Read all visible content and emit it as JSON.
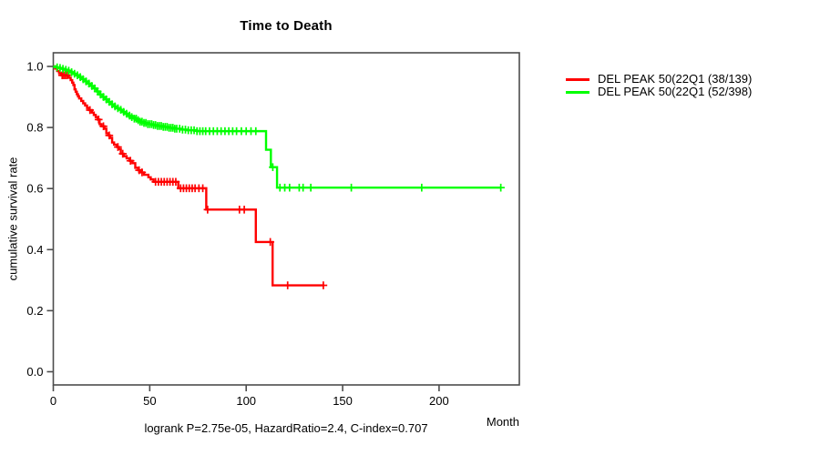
{
  "title": "Time to Death",
  "footer": {
    "text": "logrank P=2.75e-05, HazardRatio=2.4, C-index=0.707"
  },
  "axis": {
    "x_label": "Month",
    "y_label": "cumulative survival rate"
  },
  "legend": {
    "items": [
      {
        "label": "DEL PEAK 50(22Q1 (38/139)",
        "color": "#ff0000"
      },
      {
        "label": "DEL PEAK 50(22Q1 (52/398)",
        "color": "#00ff00"
      }
    ]
  },
  "colors": {
    "frame": "#4d4d4d",
    "text": "#000000",
    "background": "#ffffff"
  },
  "chart_data": {
    "type": "line",
    "subtype": "kaplan-meier-step-curves",
    "title": "Time to Death",
    "xlabel": "Month",
    "ylabel": "cumulative survival rate",
    "xlim": [
      0,
      235
    ],
    "ylim": [
      0.0,
      1.0
    ],
    "x_ticks": [
      0,
      50,
      100,
      150,
      200
    ],
    "y_ticks": [
      0.0,
      0.2,
      0.4,
      0.6,
      0.8,
      1.0
    ],
    "grid": false,
    "legend_position": "right-outside",
    "annotation": "logrank P=2.75e-05, HazardRatio=2.4, C-index=0.707",
    "series": [
      {
        "name": "DEL PEAK 50(22Q1 (38/139)",
        "color": "#ff0000",
        "end_month": 140.5,
        "steps": [
          [
            0,
            1.0
          ],
          [
            1,
            0.993
          ],
          [
            2,
            0.985
          ],
          [
            3,
            0.978
          ],
          [
            4,
            0.971
          ],
          [
            8,
            0.963
          ],
          [
            9,
            0.955
          ],
          [
            9.8,
            0.947
          ],
          [
            10.4,
            0.939
          ],
          [
            11,
            0.925
          ],
          [
            11.6,
            0.917
          ],
          [
            12.2,
            0.909
          ],
          [
            12.8,
            0.902
          ],
          [
            13.4,
            0.895
          ],
          [
            14.5,
            0.887
          ],
          [
            15.5,
            0.879
          ],
          [
            16.5,
            0.872
          ],
          [
            17.5,
            0.864
          ],
          [
            18.5,
            0.857
          ],
          [
            20,
            0.849
          ],
          [
            21,
            0.841
          ],
          [
            22,
            0.834
          ],
          [
            23,
            0.826
          ],
          [
            24,
            0.811
          ],
          [
            25,
            0.804
          ],
          [
            26.5,
            0.796
          ],
          [
            27.5,
            0.781
          ],
          [
            28.5,
            0.774
          ],
          [
            29.5,
            0.766
          ],
          [
            30.5,
            0.751
          ],
          [
            31.5,
            0.744
          ],
          [
            33,
            0.736
          ],
          [
            34,
            0.729
          ],
          [
            35,
            0.714
          ],
          [
            36.5,
            0.706
          ],
          [
            38,
            0.699
          ],
          [
            39.5,
            0.691
          ],
          [
            41,
            0.683
          ],
          [
            42.5,
            0.668
          ],
          [
            44,
            0.66
          ],
          [
            45.5,
            0.653
          ],
          [
            47,
            0.645
          ],
          [
            49.3,
            0.637
          ],
          [
            50.5,
            0.63
          ],
          [
            52,
            0.622
          ],
          [
            64.8,
            0.601
          ],
          [
            79.3,
            0.531
          ],
          [
            105,
            0.425
          ],
          [
            113.7,
            0.283
          ]
        ],
        "censors": [
          4.6,
          5.4,
          6.2,
          7.1,
          19,
          23.5,
          26,
          29,
          33.5,
          36,
          40,
          44.5,
          46,
          53,
          54.5,
          56,
          57.5,
          59,
          60.5,
          62,
          63.5,
          66,
          67.5,
          69,
          70.5,
          72,
          73.5,
          75.5,
          77.5,
          80,
          96.5,
          99,
          112.5,
          121.5,
          140
        ]
      },
      {
        "name": "DEL PEAK 50(22Q1 (52/398)",
        "color": "#00ff00",
        "end_month": 232,
        "steps": [
          [
            0,
            1.0
          ],
          [
            1.5,
            0.997
          ],
          [
            3,
            0.995
          ],
          [
            4.5,
            0.992
          ],
          [
            6,
            0.989
          ],
          [
            7.5,
            0.986
          ],
          [
            9,
            0.981
          ],
          [
            10.5,
            0.976
          ],
          [
            12,
            0.971
          ],
          [
            13.5,
            0.965
          ],
          [
            15,
            0.958
          ],
          [
            16.5,
            0.951
          ],
          [
            18,
            0.944
          ],
          [
            19.5,
            0.936
          ],
          [
            21,
            0.928
          ],
          [
            22.5,
            0.918
          ],
          [
            24,
            0.908
          ],
          [
            25.5,
            0.9
          ],
          [
            27,
            0.892
          ],
          [
            28.5,
            0.884
          ],
          [
            30,
            0.876
          ],
          [
            31.5,
            0.869
          ],
          [
            33,
            0.863
          ],
          [
            34.5,
            0.858
          ],
          [
            36,
            0.851
          ],
          [
            37.5,
            0.845
          ],
          [
            39,
            0.839
          ],
          [
            40.5,
            0.834
          ],
          [
            42,
            0.829
          ],
          [
            43.5,
            0.824
          ],
          [
            45,
            0.819
          ],
          [
            47,
            0.815
          ],
          [
            49,
            0.811
          ],
          [
            51.5,
            0.808
          ],
          [
            54,
            0.805
          ],
          [
            57,
            0.802
          ],
          [
            60,
            0.799
          ],
          [
            63,
            0.796
          ],
          [
            66,
            0.793
          ],
          [
            69.5,
            0.791
          ],
          [
            74.5,
            0.788
          ],
          [
            110.3,
            0.727
          ],
          [
            112.8,
            0.67
          ],
          [
            116,
            0.603
          ]
        ],
        "censors": [
          2,
          3.5,
          5,
          6.5,
          8,
          9.5,
          11,
          12.5,
          14,
          15.5,
          17,
          18.5,
          20,
          21.5,
          23,
          24.5,
          26,
          27.5,
          29,
          30.5,
          32,
          33.5,
          35,
          36.5,
          38,
          39.5,
          40.7,
          42,
          43,
          44,
          45,
          46,
          47,
          48,
          49,
          50,
          51,
          52,
          53,
          54,
          55,
          56,
          57,
          58,
          59,
          60,
          61,
          62,
          63,
          64,
          65.5,
          67,
          68.5,
          70,
          71.5,
          73,
          74.5,
          76,
          77.5,
          79,
          81,
          83,
          85,
          87,
          89,
          91,
          93,
          95,
          97.5,
          100,
          102.5,
          105,
          113.8,
          117.5,
          120,
          122.5,
          127.5,
          129.5,
          133.5,
          154.5,
          191,
          232
        ]
      }
    ]
  }
}
